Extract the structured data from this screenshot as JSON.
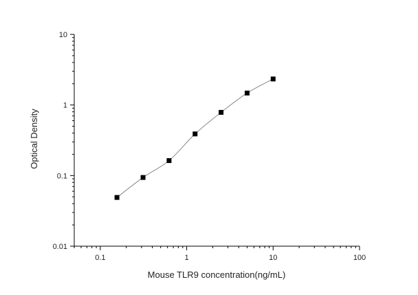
{
  "chart_data": {
    "type": "scatter",
    "title": "",
    "xlabel": "Mouse TLR9 concentration(ng/mL)",
    "ylabel": "Optical Density",
    "xscale": "log",
    "yscale": "log",
    "xlim": [
      0.05,
      100
    ],
    "ylim": [
      0.01,
      10
    ],
    "xticks": [
      "0.1",
      "1",
      "10",
      "100"
    ],
    "yticks": [
      "0.01",
      "0.1",
      "1",
      "10"
    ],
    "grid": false,
    "legend": "none",
    "marker": "square",
    "fit_curve": true,
    "colors": {
      "marker": "#000000",
      "curve": "#888888",
      "axis": "#000000"
    },
    "series": [
      {
        "x": [
          0.156,
          0.3125,
          0.625,
          1.25,
          2.5,
          5,
          10
        ],
        "y": [
          0.049,
          0.094,
          0.163,
          0.389,
          0.786,
          1.476,
          2.335
        ]
      }
    ]
  }
}
